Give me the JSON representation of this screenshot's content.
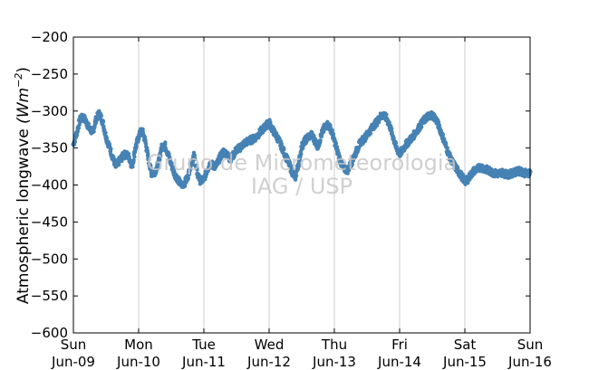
{
  "chart_data": {
    "type": "scatter",
    "title": "",
    "xlabel": "",
    "ylabel": "Atmospheric longwave",
    "ylabel_unit": "(Wm",
    "ylabel_unit_exp": "−2",
    "ylabel_unit_close": ")",
    "ylim": [
      -600,
      -200
    ],
    "yticks": [
      -200,
      -250,
      -300,
      -350,
      -400,
      -450,
      -500,
      -550,
      -600
    ],
    "ytick_labels": [
      "−200",
      "−250",
      "−300",
      "−350",
      "−400",
      "−450",
      "−500",
      "−550",
      "−600"
    ],
    "xlim": [
      0,
      7
    ],
    "xticks": [
      {
        "day": "Sun",
        "date": "Jun-09"
      },
      {
        "day": "Mon",
        "date": "Jun-10"
      },
      {
        "day": "Tue",
        "date": "Jun-11"
      },
      {
        "day": "Wed",
        "date": "Jun-12"
      },
      {
        "day": "Thu",
        "date": "Jun-13"
      },
      {
        "day": "Fri",
        "date": "Jun-14"
      },
      {
        "day": "Sat",
        "date": "Jun-15"
      },
      {
        "day": "Sun",
        "date": "Jun-16"
      }
    ],
    "grid": "vertical",
    "marker_color": "#4682b4",
    "series": [
      {
        "x": [
          0.0,
          0.05,
          0.1,
          0.15,
          0.2,
          0.25,
          0.3,
          0.35,
          0.4,
          0.45,
          0.5,
          0.55,
          0.6,
          0.65,
          0.7,
          0.75,
          0.8,
          0.85,
          0.9,
          0.95,
          1.0,
          1.05,
          1.1,
          1.15,
          1.2,
          1.25,
          1.3,
          1.35,
          1.4,
          1.45,
          1.5,
          1.55,
          1.6,
          1.65,
          1.7,
          1.75,
          1.8,
          1.85,
          1.9,
          1.95,
          2.0,
          2.05,
          2.1,
          2.15,
          2.2,
          2.25,
          2.3,
          2.35,
          2.4,
          2.45,
          2.5,
          2.55,
          2.6,
          2.65,
          2.7,
          2.75,
          2.8,
          2.85,
          2.9,
          2.95,
          3.0,
          3.05,
          3.1,
          3.15,
          3.2,
          3.25,
          3.3,
          3.35,
          3.4,
          3.45,
          3.5,
          3.55,
          3.6,
          3.65,
          3.7,
          3.75,
          3.8,
          3.85,
          3.9,
          3.95,
          4.0,
          4.05,
          4.1,
          4.15,
          4.2,
          4.25,
          4.3,
          4.35,
          4.4,
          4.45,
          4.5,
          4.55,
          4.6,
          4.65,
          4.7,
          4.75,
          4.8,
          4.85,
          4.9,
          4.95,
          5.0,
          5.05,
          5.1,
          5.15,
          5.2,
          5.25,
          5.3,
          5.35,
          5.4,
          5.45,
          5.5,
          5.55,
          5.6,
          5.65,
          5.7,
          5.75,
          5.8,
          5.85,
          5.9,
          5.95,
          6.0,
          6.05,
          6.1,
          6.15,
          6.2,
          6.25,
          6.3,
          6.35,
          6.4,
          6.45,
          6.5,
          6.55,
          6.6,
          6.65,
          6.7,
          6.75,
          6.8,
          6.85,
          6.9,
          6.95,
          7.0
        ],
        "y": [
          -345,
          -330,
          -312,
          -308,
          -315,
          -325,
          -328,
          -310,
          -303,
          -315,
          -335,
          -348,
          -362,
          -375,
          -368,
          -362,
          -358,
          -362,
          -375,
          -350,
          -335,
          -325,
          -340,
          -365,
          -385,
          -382,
          -372,
          -350,
          -345,
          -358,
          -372,
          -385,
          -392,
          -400,
          -398,
          -390,
          -372,
          -360,
          -385,
          -395,
          -392,
          -380,
          -370,
          -375,
          -372,
          -362,
          -355,
          -358,
          -365,
          -360,
          -352,
          -350,
          -345,
          -342,
          -340,
          -338,
          -335,
          -330,
          -325,
          -320,
          -315,
          -325,
          -332,
          -340,
          -350,
          -360,
          -370,
          -382,
          -390,
          -372,
          -348,
          -340,
          -335,
          -332,
          -340,
          -348,
          -332,
          -322,
          -318,
          -325,
          -340,
          -355,
          -370,
          -378,
          -380,
          -372,
          -362,
          -352,
          -342,
          -338,
          -332,
          -326,
          -320,
          -315,
          -308,
          -305,
          -310,
          -320,
          -335,
          -350,
          -358,
          -352,
          -345,
          -340,
          -335,
          -328,
          -322,
          -315,
          -310,
          -306,
          -305,
          -310,
          -320,
          -332,
          -345,
          -358,
          -368,
          -375,
          -382,
          -388,
          -395,
          -392,
          -385,
          -380,
          -378,
          -376,
          -378,
          -380,
          -382,
          -384,
          -385,
          -383,
          -384,
          -386,
          -385,
          -383,
          -382,
          -381,
          -383,
          -385,
          -382
        ]
      }
    ]
  },
  "watermark": {
    "line1": "Grupo de Micrometeorologia",
    "line2": "IAG / USP"
  }
}
